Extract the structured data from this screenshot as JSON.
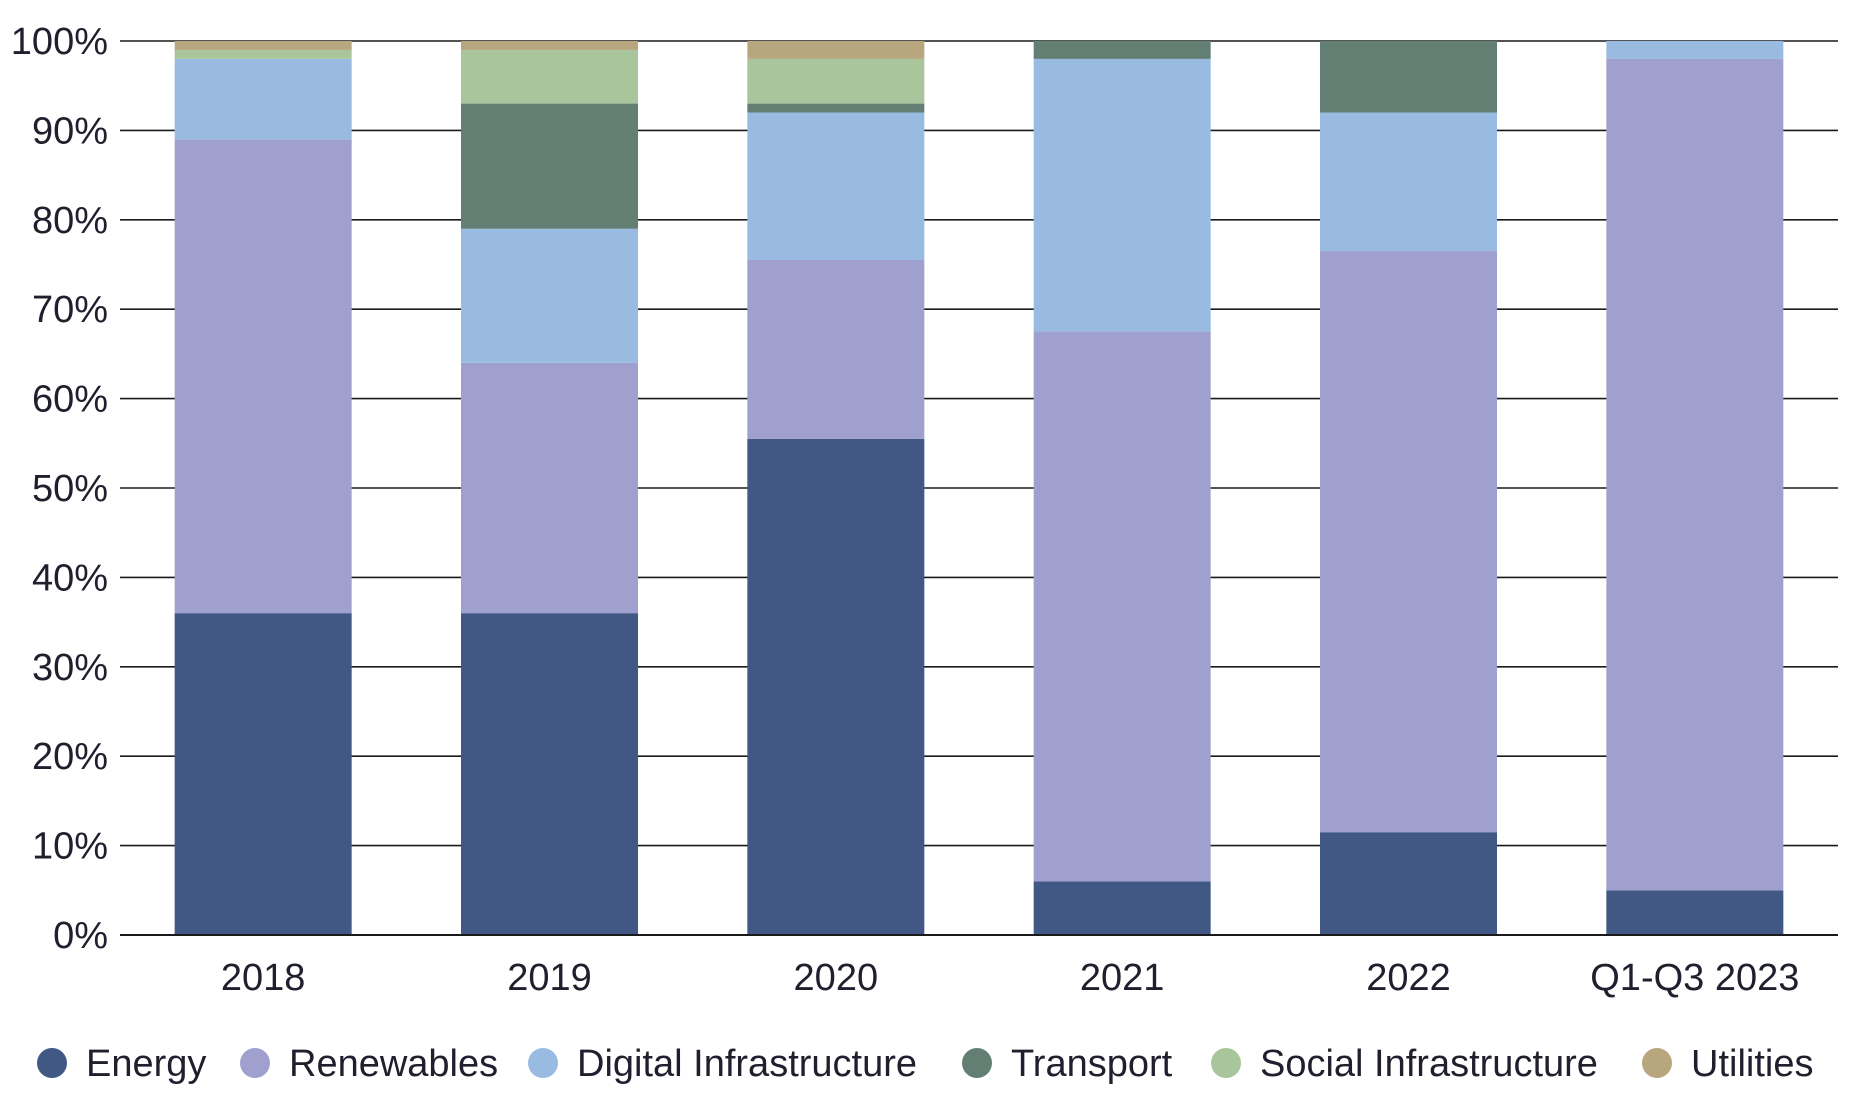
{
  "chart_data": {
    "type": "bar",
    "stacked": true,
    "title": "",
    "xlabel": "",
    "ylabel": "",
    "ylim": [
      0,
      100
    ],
    "y_ticks": [
      "0%",
      "10%",
      "20%",
      "30%",
      "40%",
      "50%",
      "60%",
      "70%",
      "80%",
      "90%",
      "100%"
    ],
    "grid": true,
    "legend_position": "bottom",
    "categories": [
      "2018",
      "2019",
      "2020",
      "2021",
      "2022",
      "Q1-Q3 2023"
    ],
    "series": [
      {
        "name": "Energy",
        "color": "#415885",
        "values": [
          36,
          36,
          55.5,
          6,
          11.5,
          5
        ]
      },
      {
        "name": "Renewables",
        "color": "#a0a0ce",
        "values": [
          53,
          28,
          20,
          61.5,
          65,
          93
        ]
      },
      {
        "name": "Digital Infrastructure",
        "color": "#99bbe1",
        "values": [
          9,
          15,
          16.5,
          30.5,
          15.5,
          2
        ]
      },
      {
        "name": "Transport",
        "color": "#637f73",
        "values": [
          0,
          14,
          1,
          2,
          8,
          0
        ]
      },
      {
        "name": "Social Infrastructure",
        "color": "#a9c59b",
        "values": [
          1,
          6,
          5,
          0,
          0,
          0
        ]
      },
      {
        "name": "Utilities",
        "color": "#b8a67e",
        "values": [
          1,
          1,
          2,
          0,
          0,
          0
        ]
      }
    ]
  }
}
